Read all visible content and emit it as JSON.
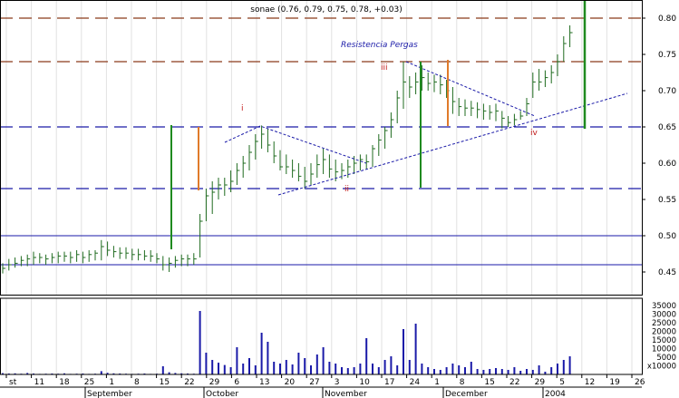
{
  "chart_data": {
    "type": "bar",
    "title": "sonae (0.76, 0.79, 0.75, 0.78, +0.03)",
    "annotations": {
      "resistance_label": "Resistencia Pergas",
      "wave_labels": [
        "i",
        "ii",
        "iii",
        "iv"
      ]
    },
    "price_axis": {
      "range": [
        0.42,
        0.84
      ],
      "ticks": [
        "0.80",
        "0.75",
        "0.70",
        "0.65",
        "0.60",
        "0.55",
        "0.50",
        "0.45"
      ]
    },
    "volume_axis": {
      "range": [
        0,
        40000
      ],
      "ticks": [
        "35000",
        "30000",
        "25000",
        "20000",
        "15000",
        "10000",
        "5000",
        "x10000"
      ]
    },
    "x_axis": {
      "day_ticks": [
        "st",
        "11",
        "18",
        "25",
        "1",
        "8",
        "15",
        "22",
        "29",
        "6",
        "13",
        "20",
        "27",
        "3",
        "10",
        "17",
        "24",
        "1",
        "8",
        "15",
        "22",
        "29",
        "5",
        "12",
        "19",
        "26"
      ],
      "month_labels": [
        "September",
        "October",
        "November",
        "December",
        "2004"
      ]
    },
    "reference_lines": {
      "brown_dashed": [
        0.8,
        0.74
      ],
      "blue_dashed": [
        0.65,
        0.565
      ],
      "blue_solid": [
        0.5,
        0.46
      ]
    },
    "ohlc": [
      [
        0.448,
        0.462,
        0.455
      ],
      [
        0.452,
        0.468,
        0.46
      ],
      [
        0.456,
        0.47,
        0.462
      ],
      [
        0.458,
        0.472,
        0.466
      ],
      [
        0.458,
        0.474,
        0.468
      ],
      [
        0.46,
        0.478,
        0.47
      ],
      [
        0.462,
        0.476,
        0.47
      ],
      [
        0.46,
        0.474,
        0.468
      ],
      [
        0.462,
        0.476,
        0.47
      ],
      [
        0.462,
        0.478,
        0.472
      ],
      [
        0.464,
        0.478,
        0.472
      ],
      [
        0.462,
        0.478,
        0.47
      ],
      [
        0.464,
        0.48,
        0.474
      ],
      [
        0.462,
        0.478,
        0.47
      ],
      [
        0.464,
        0.48,
        0.474
      ],
      [
        0.466,
        0.48,
        0.476
      ],
      [
        0.466,
        0.494,
        0.485
      ],
      [
        0.472,
        0.492,
        0.48
      ],
      [
        0.47,
        0.486,
        0.478
      ],
      [
        0.468,
        0.484,
        0.476
      ],
      [
        0.468,
        0.484,
        0.476
      ],
      [
        0.466,
        0.482,
        0.474
      ],
      [
        0.466,
        0.482,
        0.474
      ],
      [
        0.466,
        0.48,
        0.472
      ],
      [
        0.464,
        0.48,
        0.472
      ],
      [
        0.462,
        0.476,
        0.468
      ],
      [
        0.452,
        0.472,
        0.46
      ],
      [
        0.45,
        0.47,
        0.462
      ],
      [
        0.456,
        0.472,
        0.466
      ],
      [
        0.458,
        0.474,
        0.468
      ],
      [
        0.458,
        0.474,
        0.468
      ],
      [
        0.46,
        0.476,
        0.468
      ],
      [
        0.47,
        0.53,
        0.52
      ],
      [
        0.52,
        0.565,
        0.555
      ],
      [
        0.53,
        0.575,
        0.56
      ],
      [
        0.55,
        0.58,
        0.57
      ],
      [
        0.555,
        0.58,
        0.57
      ],
      [
        0.56,
        0.59,
        0.575
      ],
      [
        0.57,
        0.6,
        0.59
      ],
      [
        0.58,
        0.61,
        0.6
      ],
      [
        0.59,
        0.625,
        0.615
      ],
      [
        0.605,
        0.64,
        0.63
      ],
      [
        0.62,
        0.652,
        0.64
      ],
      [
        0.615,
        0.648,
        0.625
      ],
      [
        0.6,
        0.63,
        0.61
      ],
      [
        0.59,
        0.618,
        0.595
      ],
      [
        0.585,
        0.612,
        0.595
      ],
      [
        0.58,
        0.605,
        0.59
      ],
      [
        0.575,
        0.6,
        0.582
      ],
      [
        0.565,
        0.595,
        0.575
      ],
      [
        0.57,
        0.6,
        0.585
      ],
      [
        0.58,
        0.612,
        0.598
      ],
      [
        0.585,
        0.62,
        0.605
      ],
      [
        0.58,
        0.612,
        0.592
      ],
      [
        0.575,
        0.605,
        0.588
      ],
      [
        0.578,
        0.6,
        0.59
      ],
      [
        0.58,
        0.605,
        0.595
      ],
      [
        0.585,
        0.61,
        0.6
      ],
      [
        0.59,
        0.612,
        0.605
      ],
      [
        0.592,
        0.612,
        0.602
      ],
      [
        0.595,
        0.625,
        0.62
      ],
      [
        0.61,
        0.64,
        0.632
      ],
      [
        0.62,
        0.65,
        0.645
      ],
      [
        0.635,
        0.67,
        0.66
      ],
      [
        0.655,
        0.7,
        0.69
      ],
      [
        0.675,
        0.74,
        0.712
      ],
      [
        0.69,
        0.72,
        0.705
      ],
      [
        0.695,
        0.725,
        0.712
      ],
      [
        0.7,
        0.735,
        0.718
      ],
      [
        0.7,
        0.725,
        0.71
      ],
      [
        0.698,
        0.722,
        0.712
      ],
      [
        0.695,
        0.722,
        0.708
      ],
      [
        0.69,
        0.715,
        0.7
      ],
      [
        0.668,
        0.705,
        0.685
      ],
      [
        0.665,
        0.69,
        0.678
      ],
      [
        0.665,
        0.688,
        0.676
      ],
      [
        0.665,
        0.686,
        0.676
      ],
      [
        0.662,
        0.684,
        0.674
      ],
      [
        0.66,
        0.682,
        0.672
      ],
      [
        0.66,
        0.68,
        0.67
      ],
      [
        0.658,
        0.682,
        0.672
      ],
      [
        0.648,
        0.672,
        0.662
      ],
      [
        0.65,
        0.665,
        0.656
      ],
      [
        0.652,
        0.668,
        0.66
      ],
      [
        0.66,
        0.672,
        0.665
      ],
      [
        0.665,
        0.69,
        0.682
      ],
      [
        0.69,
        0.725,
        0.712
      ],
      [
        0.7,
        0.73,
        0.712
      ],
      [
        0.705,
        0.728,
        0.718
      ],
      [
        0.71,
        0.735,
        0.725
      ],
      [
        0.72,
        0.75,
        0.74
      ],
      [
        0.74,
        0.775,
        0.765
      ],
      [
        0.76,
        0.79,
        0.78
      ]
    ],
    "volume": [
      700,
      500,
      600,
      400,
      800,
      500,
      300,
      400,
      500,
      400,
      600,
      300,
      400,
      500,
      300,
      400,
      1800,
      900,
      600,
      500,
      400,
      300,
      400,
      500,
      300,
      400,
      4500,
      1200,
      800,
      600,
      500,
      400,
      35000,
      12000,
      8000,
      6500,
      5200,
      4000,
      15000,
      6000,
      9000,
      5000,
      23000,
      18000,
      7000,
      6000,
      8000,
      5500,
      12000,
      9000,
      5000,
      11000,
      15000,
      7000,
      6000,
      4000,
      3500,
      4000,
      6000,
      20000,
      6000,
      4000,
      8000,
      10000,
      5000,
      25000,
      8000,
      28000,
      6000,
      4000,
      3000,
      2500,
      4000,
      6000,
      5000,
      4000,
      7000,
      3000,
      2500,
      3000,
      3500,
      3000,
      2500,
      4000,
      2000,
      3000,
      2500,
      5000,
      1500,
      4000,
      6000,
      8000,
      10000
    ]
  }
}
